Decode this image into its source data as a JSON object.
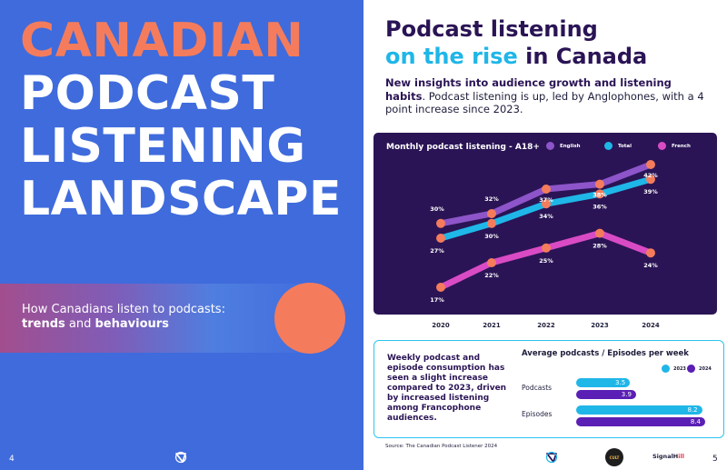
{
  "left_page": {
    "title_line1": "CANADIAN",
    "title_line2": "PODCAST",
    "title_line3": "LISTENING",
    "title_line4": "LANDSCAPE",
    "subtitle_line1": "How Canadians listen to podcasts:",
    "subtitle_bold1": "trends",
    "subtitle_and": " and ",
    "subtitle_bold2": "behaviours",
    "page_number": "4",
    "logo_icon": "cpl-logo-icon"
  },
  "right_page": {
    "heading_line1": "Podcast listening",
    "heading_accent": "on the rise",
    "heading_rest": " in Canada",
    "intro_bold": "New insights into audience growth and listening habits",
    "intro_rest": ". Podcast listening is up, led by Anglophones, with a 4 point increase since 2023.",
    "source": "Source: The Canadian Podcast Listener 2024",
    "page_number": "5",
    "logos": [
      "cpl-logo-icon",
      "cult-logo",
      "signalhill-logo"
    ],
    "logo_cult_text": "CULT",
    "logo_signalhill_text1": "SignalH",
    "logo_signalhill_text2": "ill"
  },
  "chart_data": [
    {
      "type": "line",
      "title": "Monthly podcast listening - A18+",
      "x": [
        "2020",
        "2021",
        "2022",
        "2023",
        "2024"
      ],
      "series": [
        {
          "name": "English",
          "color": "#8d55c9",
          "values": [
            30,
            32,
            37,
            38,
            42
          ],
          "labels": [
            "30%",
            "32%",
            "37%",
            "38%",
            "42%"
          ]
        },
        {
          "name": "Total",
          "color": "#1fb6e8",
          "values": [
            27,
            30,
            34,
            36,
            39
          ],
          "labels": [
            "27%",
            "30%",
            "34%",
            "36%",
            "39%"
          ]
        },
        {
          "name": "French",
          "color": "#d94bc4",
          "values": [
            17,
            22,
            25,
            28,
            24
          ],
          "labels": [
            "17%",
            "22%",
            "25%",
            "28%",
            "24%"
          ]
        }
      ],
      "legend_position": "top"
    },
    {
      "type": "bar",
      "orientation": "horizontal",
      "title": "Average podcasts / Episodes per week",
      "description": "Weekly podcast and episode consumption has seen a slight increase compared to 2023, driven by increased listening among Francophone audiences.",
      "categories": [
        "Podcasts",
        "Episodes"
      ],
      "series": [
        {
          "name": "2023",
          "color": "#1fb6e8",
          "values": [
            3.5,
            8.2
          ],
          "labels": [
            "3.5",
            "8.2"
          ]
        },
        {
          "name": "2024",
          "color": "#5a1fb4",
          "values": [
            3.9,
            8.4
          ],
          "labels": [
            "3.9",
            "8.4"
          ]
        }
      ]
    }
  ]
}
